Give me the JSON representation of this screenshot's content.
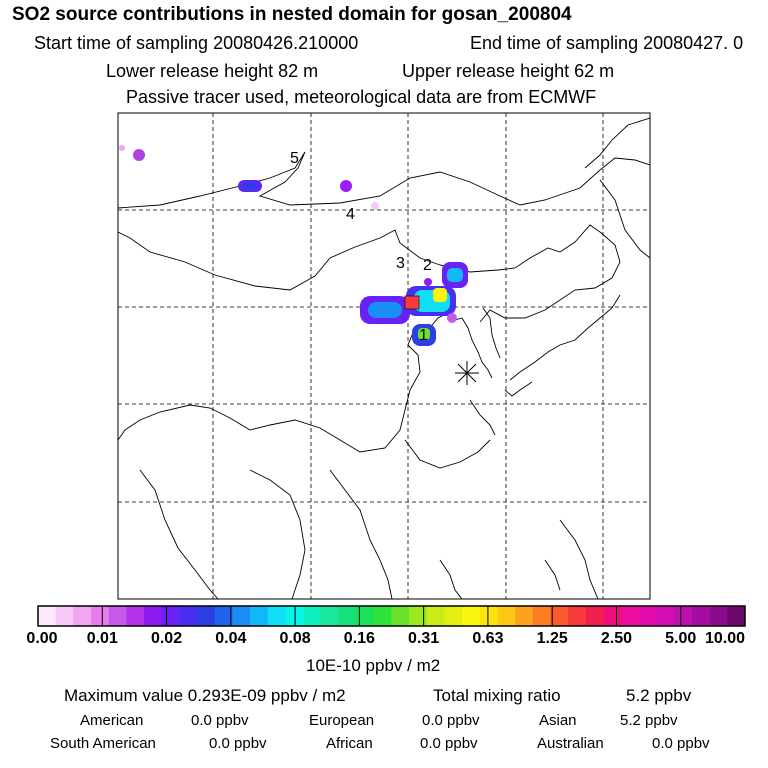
{
  "header": {
    "title": "SO2 source contributions in nested domain for gosan_200804",
    "start_sampling": "Start time of sampling 20080426.210000",
    "end_sampling": "End time of sampling 20080427.     0",
    "lower_release": "Lower release height   82 m",
    "upper_release": "Upper release height   62 m",
    "tracer_note": "Passive tracer used, meteorological data are from ECMWF"
  },
  "map": {
    "site_labels": [
      "1",
      "2",
      "3",
      "4",
      "5"
    ],
    "receptor_marker": "station-star-marker"
  },
  "colorbar": {
    "tick_labels": [
      "0.00",
      "0.01",
      "0.02",
      "0.04",
      "0.08",
      "0.16",
      "0.31",
      "0.63",
      "1.25",
      "2.50",
      "5.00",
      "10.00"
    ],
    "colors": [
      "#fde8fb",
      "#f8c9f6",
      "#f0a6f0",
      "#e57fe9",
      "#c65be7",
      "#b333ef",
      "#8f1bf2",
      "#6a21f4",
      "#4b2ff0",
      "#2d3ee6",
      "#1d66ec",
      "#1b8ef6",
      "#12b7f8",
      "#10def6",
      "#08f6e8",
      "#0cf0c0",
      "#19e89c",
      "#15e07a",
      "#1ce05a",
      "#2fe23a",
      "#6ae22a",
      "#9ee820",
      "#c8ec17",
      "#e3ef12",
      "#fbf40d",
      "#fde30e",
      "#fcc813",
      "#fca11a",
      "#fb7f22",
      "#fa5a2c",
      "#f73a3a",
      "#f0204c",
      "#f20d7f",
      "#ef0d9e",
      "#e30cad",
      "#d10fb4",
      "#bc10b1",
      "#a60ca2",
      "#8c0a8c",
      "#6c0a6c"
    ],
    "unit_label": "10E-10 ppbv / m2"
  },
  "summary": {
    "maximum_value": "Maximum value  0.293E-09 ppbv / m2",
    "total_label": "Total mixing ratio",
    "total_value": "5.2 ppbv",
    "regions": [
      {
        "name": "American",
        "value": "0.0 ppbv"
      },
      {
        "name": "European",
        "value": "0.0 ppbv"
      },
      {
        "name": "Asian",
        "value": "5.2 ppbv"
      },
      {
        "name": "South American",
        "value": "0.0 ppbv"
      },
      {
        "name": "African",
        "value": "0.0 ppbv"
      },
      {
        "name": "Australian",
        "value": "0.0 ppbv"
      }
    ]
  }
}
